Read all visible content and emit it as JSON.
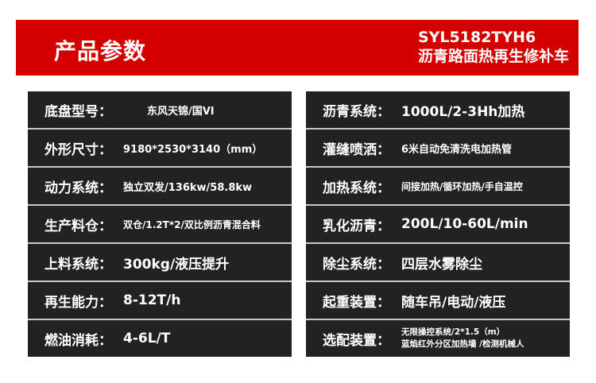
{
  "header": {
    "title": "产品参数",
    "model": "SYL5182TYH6",
    "product": "沥青路面热再生修补车",
    "color": "#d40000"
  },
  "left": [
    {
      "label": "底盘型号：",
      "value": "东风天锦/国VI"
    },
    {
      "label": "外形尺寸：",
      "value": "9180*2530*3140（mm）"
    },
    {
      "label": "动力系统：",
      "value": "独立双发/136kw/58.8kw"
    },
    {
      "label": "生产料仓：",
      "value": "双仓/1.2T*2/双比例沥青混合料"
    },
    {
      "label": "上料系统：",
      "value": "300kg/液压提升"
    },
    {
      "label": "再生能力：",
      "value": "8-12T/h"
    },
    {
      "label": "燃油消耗：",
      "value": "4-6L/T"
    }
  ],
  "right": [
    {
      "label": "沥青系统：",
      "value": "1000L/2-3Hh加热"
    },
    {
      "label": "灌缝喷洒：",
      "value": "6米自动免清洗电加热管"
    },
    {
      "label": "加热系统：",
      "value": "间接加热/循环加热/手自温控"
    },
    {
      "label": "乳化沥青：",
      "value": "200L/10-60L/min"
    },
    {
      "label": "除尘系统：",
      "value": "四层水雾除尘"
    },
    {
      "label": "起重装置：",
      "value": "随车吊/电动/液压"
    },
    {
      "label": "选配装置：",
      "value_line1": "无限操控系统/2*1.5（m）",
      "value_line2": "蓝焰红外分区加热墙 /检测机械人"
    }
  ]
}
